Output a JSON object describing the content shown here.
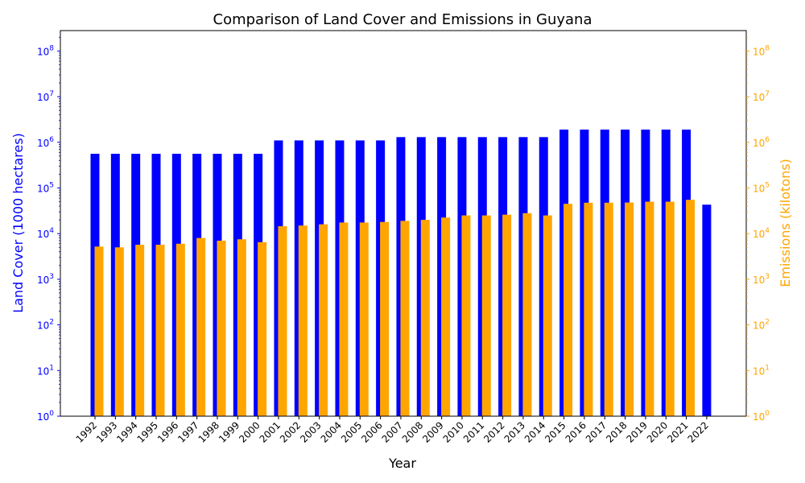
{
  "chart_data": {
    "type": "bar",
    "title": "Comparison of Land Cover and Emissions in Guyana",
    "xlabel": "Year",
    "ylabel_left": "Land Cover (1000 hectares)",
    "ylabel_right": "Emissions (kilotons)",
    "y_scale": "log",
    "ylim": [
      1,
      280000000
    ],
    "y_ticks": [
      {
        "value": 1,
        "base": "10",
        "exp": "0"
      },
      {
        "value": 10,
        "base": "10",
        "exp": "1"
      },
      {
        "value": 100,
        "base": "10",
        "exp": "2"
      },
      {
        "value": 1000,
        "base": "10",
        "exp": "3"
      },
      {
        "value": 10000,
        "base": "10",
        "exp": "4"
      },
      {
        "value": 100000,
        "base": "10",
        "exp": "5"
      },
      {
        "value": 1000000,
        "base": "10",
        "exp": "6"
      },
      {
        "value": 10000000,
        "base": "10",
        "exp": "7"
      },
      {
        "value": 100000000,
        "base": "10",
        "exp": "8"
      }
    ],
    "categories": [
      "1992",
      "1993",
      "1994",
      "1995",
      "1996",
      "1997",
      "1998",
      "1999",
      "2000",
      "2001",
      "2002",
      "2003",
      "2004",
      "2005",
      "2006",
      "2007",
      "2008",
      "2009",
      "2010",
      "2011",
      "2012",
      "2013",
      "2014",
      "2015",
      "2016",
      "2017",
      "2018",
      "2019",
      "2020",
      "2021",
      "2022"
    ],
    "series": [
      {
        "axis": "left",
        "color": "#0000ff",
        "values": [
          560000,
          560000,
          560000,
          560000,
          560000,
          560000,
          560000,
          560000,
          560000,
          1100000,
          1100000,
          1100000,
          1100000,
          1100000,
          1100000,
          1300000,
          1300000,
          1300000,
          1300000,
          1300000,
          1300000,
          1300000,
          1300000,
          1900000,
          1900000,
          1900000,
          1900000,
          1900000,
          1900000,
          1900000,
          43000
        ]
      },
      {
        "axis": "right",
        "color": "#ffa500",
        "values": [
          5200,
          5000,
          5700,
          5700,
          6000,
          8000,
          7000,
          7500,
          6500,
          14500,
          15000,
          16000,
          17500,
          17500,
          18000,
          19000,
          20000,
          22500,
          25000,
          25000,
          26000,
          28000,
          25000,
          45000,
          47500,
          47500,
          48000,
          50000,
          50000,
          55000,
          null
        ]
      }
    ]
  }
}
